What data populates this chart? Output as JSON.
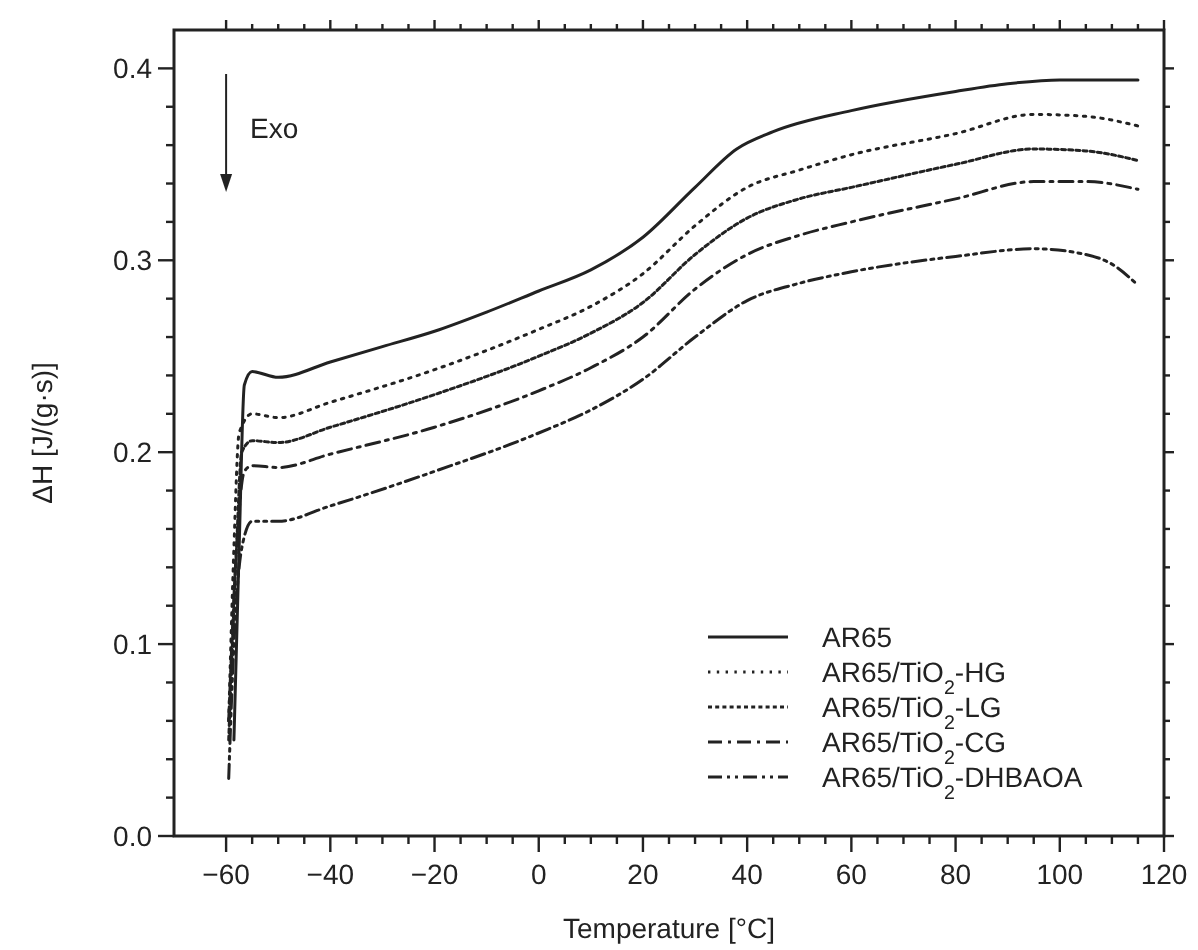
{
  "chart_data": {
    "type": "line",
    "xlabel": "Temperature [°C]",
    "ylabel": "ΔH [J/(g·s)]",
    "annotations": [
      "Exo"
    ],
    "xlim": [
      -70,
      120
    ],
    "ylim": [
      0,
      0.42
    ],
    "xticks": [
      {
        "value": -60,
        "label": "−60"
      },
      {
        "value": -55,
        "label": null
      },
      {
        "value": -50,
        "label": null
      },
      {
        "value": -45,
        "label": null
      },
      {
        "value": -40,
        "label": "−40"
      },
      {
        "value": -35,
        "label": null
      },
      {
        "value": -30,
        "label": null
      },
      {
        "value": -25,
        "label": null
      },
      {
        "value": -20,
        "label": "−20"
      },
      {
        "value": -15,
        "label": null
      },
      {
        "value": -10,
        "label": null
      },
      {
        "value": -5,
        "label": null
      },
      0,
      {
        "value": 5,
        "label": null
      },
      {
        "value": 10,
        "label": null
      },
      {
        "value": 15,
        "label": null
      },
      20,
      {
        "value": 25,
        "label": null
      },
      {
        "value": 30,
        "label": null
      },
      {
        "value": 35,
        "label": null
      },
      40,
      {
        "value": 45,
        "label": null
      },
      {
        "value": 50,
        "label": null
      },
      {
        "value": 55,
        "label": null
      },
      60,
      {
        "value": 65,
        "label": null
      },
      {
        "value": 70,
        "label": null
      },
      {
        "value": 75,
        "label": null
      },
      80,
      {
        "value": 85,
        "label": null
      },
      {
        "value": 90,
        "label": null
      },
      {
        "value": 95,
        "label": null
      },
      100,
      {
        "value": 105,
        "label": null
      },
      {
        "value": 110,
        "label": null
      },
      {
        "value": 115,
        "label": null
      },
      120
    ],
    "yticks": [
      {
        "value": 0,
        "label": "0.0"
      },
      {
        "value": 0.02,
        "label": null
      },
      {
        "value": 0.04,
        "label": null
      },
      {
        "value": 0.06,
        "label": null
      },
      {
        "value": 0.08,
        "label": null
      },
      0.1,
      {
        "value": 0.12,
        "label": null
      },
      {
        "value": 0.14,
        "label": null
      },
      {
        "value": 0.16,
        "label": null
      },
      {
        "value": 0.18,
        "label": null
      },
      0.2,
      {
        "value": 0.22,
        "label": null
      },
      {
        "value": 0.24,
        "label": null
      },
      {
        "value": 0.26,
        "label": null
      },
      {
        "value": 0.28,
        "label": null
      },
      0.3,
      {
        "value": 0.32,
        "label": null
      },
      {
        "value": 0.34,
        "label": null
      },
      {
        "value": 0.36,
        "label": null
      },
      {
        "value": 0.38,
        "label": null
      },
      0.4
    ],
    "grid": false,
    "legend": "bottom right",
    "marker": "none",
    "series": [
      {
        "name": "AR65",
        "color": "#222222",
        "line_style": "solid",
        "x": [
          -58.5,
          -57.5,
          -56.5,
          -55,
          -50,
          -40,
          -30,
          -20,
          -10,
          0,
          10,
          20,
          30,
          38,
          45,
          60,
          80,
          90,
          100,
          115
        ],
        "values": [
          0.05,
          0.15,
          0.235,
          0.242,
          0.239,
          0.247,
          0.255,
          0.263,
          0.273,
          0.284,
          0.295,
          0.312,
          0.338,
          0.358,
          0.367,
          0.378,
          0.388,
          0.392,
          0.394,
          0.394
        ]
      },
      {
        "name": "AR65/TiO$_{2}$-HG",
        "color": "#222222",
        "line_style": "dotted",
        "x": [
          -59.5,
          -58.5,
          -57.5,
          -55,
          -50,
          -40,
          -20,
          0,
          10,
          20,
          30,
          40,
          50,
          60,
          80,
          95,
          105,
          115
        ],
        "values": [
          0.06,
          0.15,
          0.21,
          0.22,
          0.218,
          0.226,
          0.243,
          0.264,
          0.276,
          0.293,
          0.318,
          0.338,
          0.347,
          0.355,
          0.366,
          0.376,
          0.375,
          0.37
        ]
      },
      {
        "name": "AR65/TiO$_{2}$-LG",
        "color": "#222222",
        "line_style": "dashed",
        "x": [
          -59.5,
          -58,
          -57,
          -55,
          -50,
          -40,
          -20,
          0,
          10,
          20,
          30,
          40,
          50,
          60,
          80,
          95,
          105,
          115
        ],
        "values": [
          0.05,
          0.15,
          0.2,
          0.206,
          0.205,
          0.213,
          0.23,
          0.25,
          0.262,
          0.278,
          0.303,
          0.322,
          0.332,
          0.338,
          0.35,
          0.358,
          0.357,
          0.352
        ]
      },
      {
        "name": "AR65/TiO$_{2}$-CG",
        "color": "#222222",
        "line_style": "dashdot",
        "x": [
          -59.5,
          -58,
          -56.5,
          -55,
          -50,
          -40,
          -20,
          0,
          10,
          20,
          30,
          40,
          50,
          60,
          80,
          95,
          105,
          115
        ],
        "values": [
          0.06,
          0.15,
          0.19,
          0.193,
          0.192,
          0.199,
          0.213,
          0.232,
          0.244,
          0.26,
          0.285,
          0.303,
          0.313,
          0.32,
          0.332,
          0.341,
          0.341,
          0.337
        ]
      },
      {
        "name": "AR65/TiO$_{2}$-DHBAOA",
        "color": "#222222",
        "line_style": "dashdotdot",
        "x": [
          -59.5,
          -58.5,
          -57,
          -55,
          -50,
          -40,
          -20,
          0,
          10,
          20,
          30,
          40,
          50,
          60,
          80,
          95,
          105,
          110,
          115
        ],
        "values": [
          0.03,
          0.1,
          0.15,
          0.164,
          0.164,
          0.172,
          0.19,
          0.21,
          0.222,
          0.238,
          0.26,
          0.279,
          0.288,
          0.294,
          0.302,
          0.306,
          0.303,
          0.298,
          0.287
        ]
      }
    ]
  }
}
